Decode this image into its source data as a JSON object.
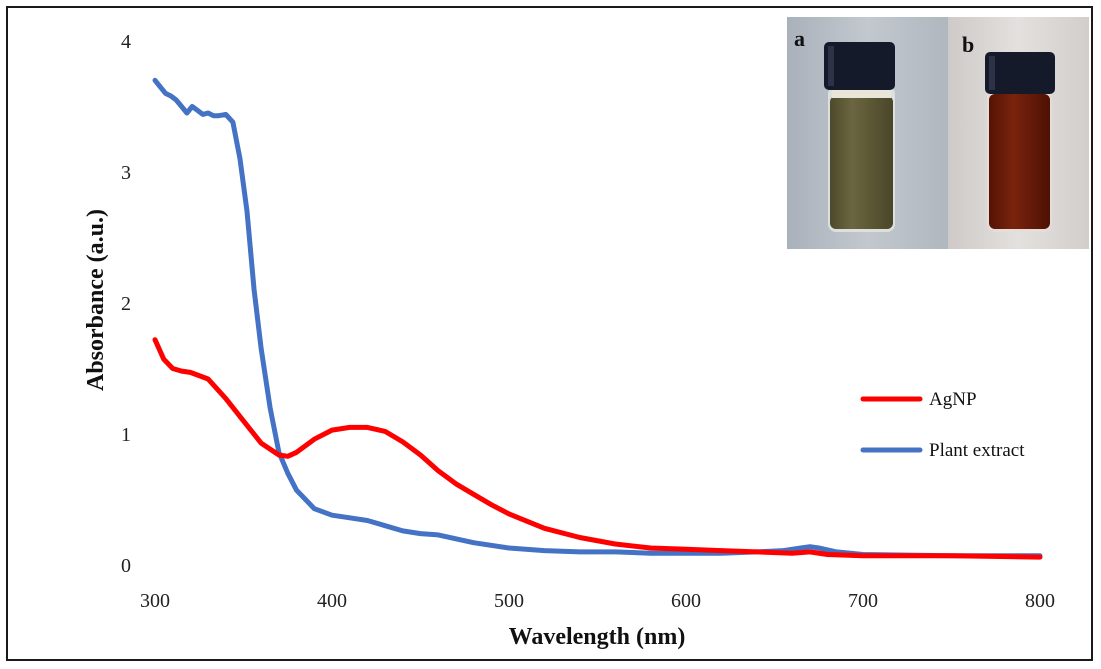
{
  "chart_data": {
    "type": "line",
    "xlabel": "Wavelength (nm)",
    "ylabel": "Absorbance (a.u.)",
    "xlim": [
      300,
      800
    ],
    "ylim": [
      0,
      4
    ],
    "xticks": [
      "300",
      "400",
      "500",
      "600",
      "700",
      "800"
    ],
    "yticks": [
      "0",
      "1",
      "2",
      "3",
      "4"
    ],
    "grid": false,
    "legend_position": "right",
    "series": [
      {
        "name": "AgNP",
        "color": "#ff0000",
        "x": [
          300,
          305,
          310,
          315,
          320,
          330,
          340,
          350,
          360,
          370,
          375,
          380,
          390,
          400,
          410,
          420,
          430,
          440,
          450,
          460,
          470,
          480,
          490,
          500,
          520,
          540,
          560,
          580,
          600,
          620,
          640,
          660,
          670,
          680,
          700,
          720,
          750,
          800
        ],
        "y": [
          1.72,
          1.57,
          1.5,
          1.48,
          1.47,
          1.42,
          1.27,
          1.1,
          0.93,
          0.84,
          0.83,
          0.86,
          0.96,
          1.03,
          1.05,
          1.05,
          1.02,
          0.94,
          0.84,
          0.72,
          0.62,
          0.54,
          0.46,
          0.39,
          0.28,
          0.21,
          0.16,
          0.13,
          0.12,
          0.11,
          0.1,
          0.09,
          0.1,
          0.08,
          0.07,
          0.07,
          0.07,
          0.06
        ]
      },
      {
        "name": "Plant extract",
        "color": "#4472c4",
        "x": [
          300,
          303,
          306,
          309,
          312,
          315,
          318,
          321,
          324,
          327,
          330,
          333,
          336,
          340,
          344,
          348,
          352,
          356,
          360,
          365,
          370,
          375,
          380,
          385,
          390,
          400,
          410,
          420,
          430,
          440,
          450,
          460,
          470,
          480,
          500,
          520,
          540,
          560,
          580,
          600,
          620,
          640,
          655,
          665,
          670,
          675,
          685,
          700,
          750,
          800
        ],
        "y": [
          3.7,
          3.65,
          3.6,
          3.58,
          3.55,
          3.5,
          3.45,
          3.5,
          3.47,
          3.44,
          3.45,
          3.43,
          3.43,
          3.44,
          3.38,
          3.1,
          2.7,
          2.1,
          1.65,
          1.2,
          0.86,
          0.7,
          0.57,
          0.5,
          0.43,
          0.38,
          0.36,
          0.34,
          0.3,
          0.26,
          0.24,
          0.23,
          0.2,
          0.17,
          0.13,
          0.11,
          0.1,
          0.1,
          0.09,
          0.09,
          0.09,
          0.1,
          0.11,
          0.13,
          0.14,
          0.13,
          0.1,
          0.08,
          0.07,
          0.07
        ]
      }
    ]
  },
  "inset": {
    "panels": [
      {
        "label": "a",
        "liquid_color": "#5f5a36",
        "background": "#b9bfc6"
      },
      {
        "label": "b",
        "liquid_color": "#6b1b08",
        "background": "#d8d4d2"
      }
    ],
    "cap_color": "#141a2a"
  }
}
